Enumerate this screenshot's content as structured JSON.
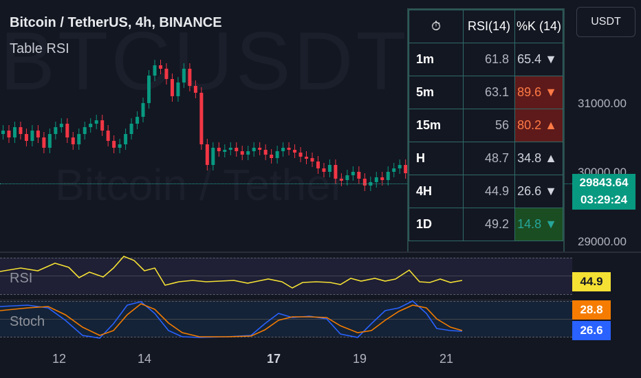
{
  "symbol_watermark": "BTCUSDT",
  "name_watermark": "Bitcoin / Tether",
  "header": {
    "title": "Bitcoin / TetherUS, 4h, BINANCE",
    "indicator": "Table RSI"
  },
  "currency_button": "USDT",
  "price_axis": {
    "ticks": [
      "31000.00",
      "30000.00",
      "29000.00"
    ]
  },
  "last_price": {
    "value": "29843.64",
    "countdown": "03:29:24"
  },
  "rsi_table": {
    "headers": [
      "⏱",
      "RSI(14)",
      "%K (14)"
    ],
    "rows": [
      {
        "tf": "1m",
        "rsi": "61.8",
        "k": "65.4",
        "arrow": "▼",
        "hl": "none"
      },
      {
        "tf": "5m",
        "rsi": "63.1",
        "k": "89.6",
        "arrow": "▼",
        "hl": "red"
      },
      {
        "tf": "15m",
        "rsi": "56",
        "k": "80.2",
        "arrow": "▲",
        "hl": "red"
      },
      {
        "tf": "H",
        "rsi": "48.7",
        "k": "34.8",
        "arrow": "▲",
        "hl": "none"
      },
      {
        "tf": "4H",
        "rsi": "44.9",
        "k": "26.6",
        "arrow": "▼",
        "hl": "none"
      },
      {
        "tf": "1D",
        "rsi": "49.2",
        "k": "14.8",
        "arrow": "▼",
        "hl": "green"
      }
    ]
  },
  "rsi_pane": {
    "label": "RSI",
    "value": "44.9",
    "color": "#f5e134"
  },
  "stoch_pane": {
    "label": "Stoch",
    "d_value": "28.8",
    "d_color": "#f57c00",
    "k_value": "26.6",
    "k_color": "#2962ff"
  },
  "time_axis": {
    "labels": [
      "12",
      "14",
      "17",
      "19",
      "21"
    ]
  },
  "colors": {
    "up": "#089981",
    "down": "#f23645",
    "background": "#131722"
  }
}
